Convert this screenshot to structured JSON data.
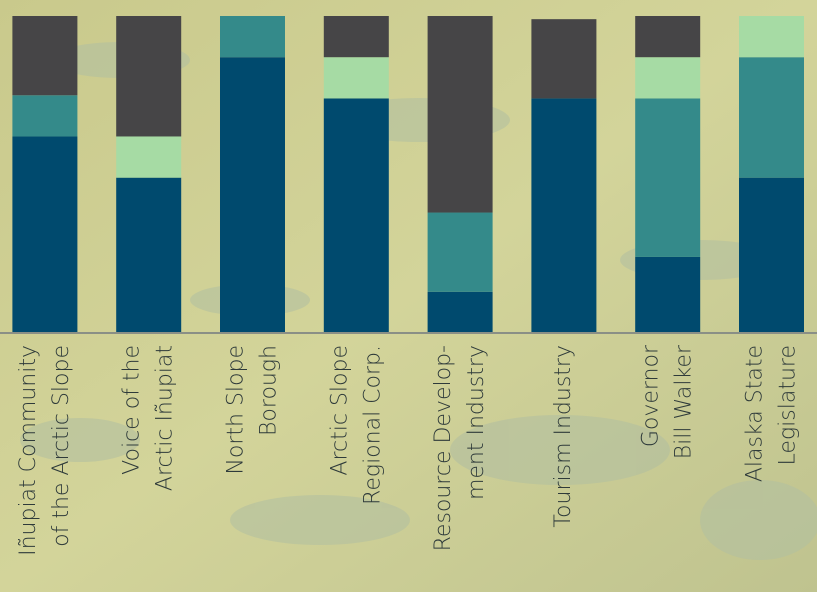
{
  "chart_data": {
    "type": "stacked-bar",
    "categories": [
      "Iñupiat Community\nof the Arctic Slope",
      "Voice of the\nArctic Iñupiat",
      "North Slope\nBorough",
      "Arctic Slope\nRegional Corp.",
      "Resource Develop-\nment Industry",
      "Tourism Industry",
      "Governor\nBill Walker",
      "Alaska State\nLegislature"
    ],
    "series": [
      {
        "color": "#004a6e",
        "values": [
          62,
          49,
          87,
          74,
          13,
          74,
          24,
          49
        ]
      },
      {
        "color": "#348a8a",
        "values": [
          13,
          null,
          13,
          null,
          25,
          null,
          50,
          38
        ]
      },
      {
        "color": "#a6dba4",
        "values": [
          null,
          13,
          null,
          13,
          null,
          null,
          13,
          13
        ]
      },
      {
        "color": "#464547",
        "values": [
          25,
          38,
          null,
          13,
          62,
          25,
          13,
          null
        ]
      }
    ],
    "ylim": [
      0,
      100
    ]
  }
}
